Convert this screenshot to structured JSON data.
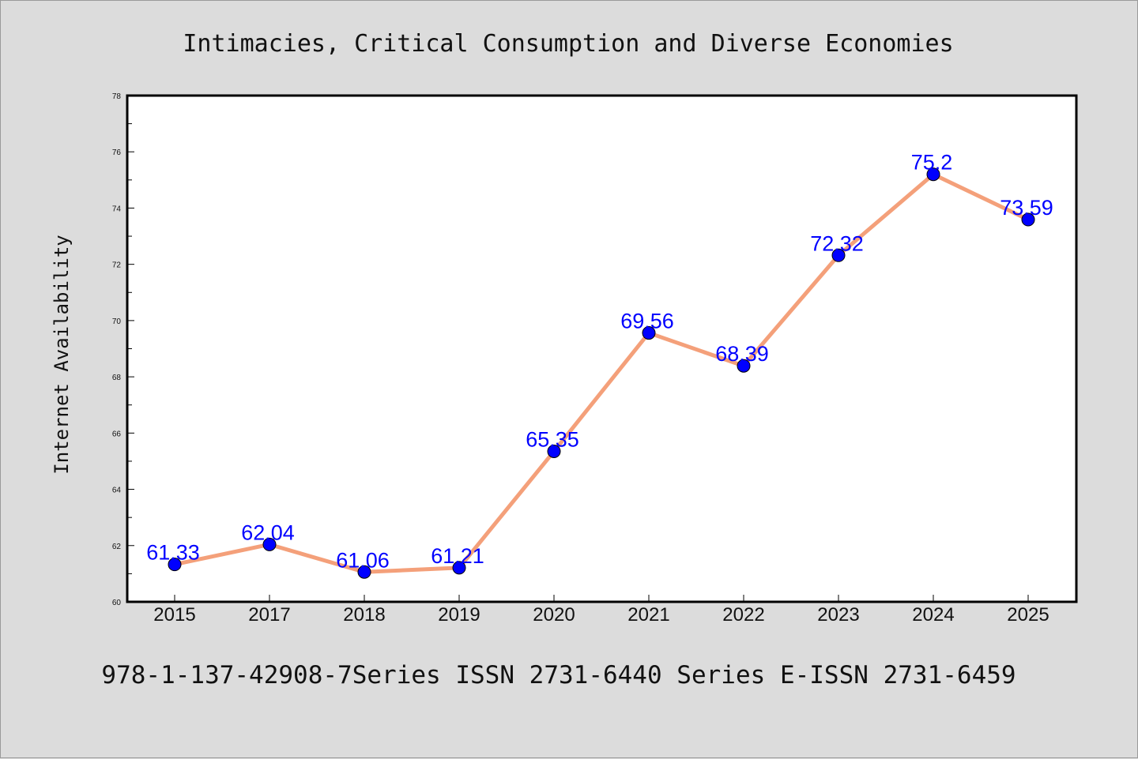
{
  "colors": {
    "line": "#f4a07a",
    "marker": "#0000ff",
    "label": "#0000ff",
    "frame": "#000000",
    "plot_bg": "#ffffff",
    "page_bg": "#dcdcdc"
  },
  "caption": "978-1-137-42908-7Series ISSN 2731-6440 Series E-ISSN 2731-6459",
  "chart_data": {
    "type": "line",
    "title": "Intimacies, Critical Consumption and Diverse Economies",
    "xlabel": "",
    "ylabel": "Internet Availability",
    "categories": [
      "2015",
      "2017",
      "2018",
      "2019",
      "2020",
      "2021",
      "2022",
      "2023",
      "2024",
      "2025"
    ],
    "series": [
      {
        "values": [
          61.33,
          62.04,
          61.06,
          61.21,
          65.35,
          69.56,
          68.39,
          72.32,
          75.2,
          73.59
        ]
      }
    ],
    "data_labels": [
      "61.33",
      "62.04",
      "61.06",
      "61.21",
      "65.35",
      "69.56",
      "68.39",
      "72.32",
      "75.2",
      "73.59"
    ],
    "ylim": [
      60,
      78
    ],
    "yticks": [
      "60",
      "62",
      "64",
      "66",
      "68",
      "70",
      "72",
      "74",
      "76",
      "78"
    ],
    "grid": false,
    "legend": "none"
  }
}
